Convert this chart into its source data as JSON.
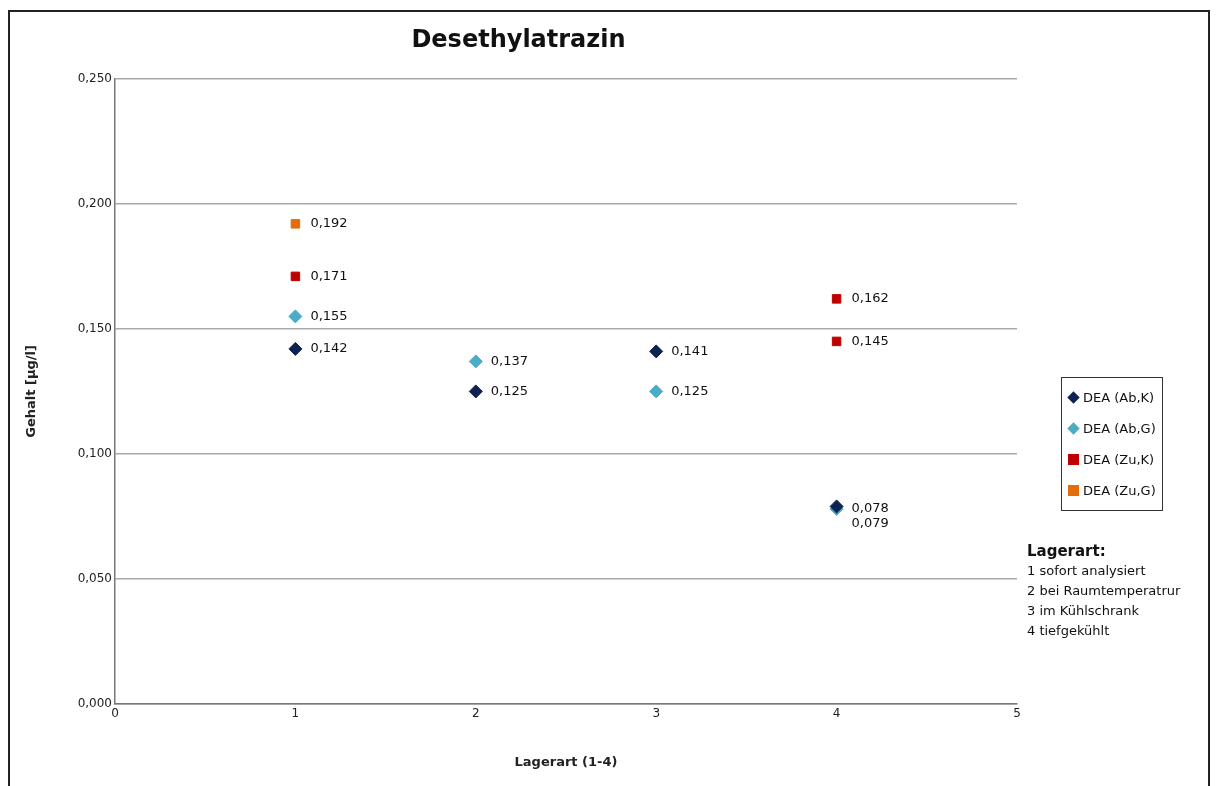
{
  "chart_data": {
    "type": "scatter",
    "title": "Desethylatrazin",
    "xlabel": "Lagerart (1-4)",
    "ylabel": "Gehalt [µg/l]",
    "xlim": [
      0,
      5
    ],
    "xticks": [
      0,
      1,
      2,
      3,
      4,
      5
    ],
    "ylim": [
      0,
      0.25
    ],
    "yticks": [
      {
        "value": 0,
        "label": "0,000"
      },
      {
        "value": 0.05,
        "label": "0,050"
      },
      {
        "value": 0.1,
        "label": "0,100"
      },
      {
        "value": 0.15,
        "label": "0,150"
      },
      {
        "value": 0.2,
        "label": "0,200"
      },
      {
        "value": 0.25,
        "label": "0,250"
      }
    ],
    "grid": "y",
    "legend": "right",
    "series": [
      {
        "name": "DEA (Ab,K)",
        "color": "#0e2254",
        "marker": "diamond",
        "x": [
          1,
          2,
          3,
          4
        ],
        "values": [
          0.142,
          0.125,
          0.141,
          0.079
        ],
        "value_labels": [
          "0,142",
          "0,125",
          "0,141",
          "0,079"
        ]
      },
      {
        "name": "DEA (Ab,G)",
        "color": "#4bacc6",
        "marker": "diamond",
        "x": [
          1,
          2,
          3,
          4
        ],
        "values": [
          0.155,
          0.137,
          0.125,
          0.078
        ],
        "value_labels": [
          "0,155",
          "0,137",
          "0,125",
          "0,078"
        ]
      },
      {
        "name": "DEA (Zu,K)",
        "color": "#c00000",
        "marker": "square",
        "x": [
          1,
          4,
          4
        ],
        "values": [
          0.171,
          0.162,
          0.145
        ],
        "value_labels": [
          "0,171",
          "0,162",
          "0,145"
        ]
      },
      {
        "name": "DEA (Zu,G)",
        "color": "#e46c0a",
        "marker": "square",
        "x": [
          1
        ],
        "values": [
          0.192
        ],
        "value_labels": [
          "0,192"
        ]
      }
    ],
    "annotations": [
      "Lagerart:",
      "1 sofort analysiert",
      "2 bei Raumtemperatrur",
      "3 im Kühlschrank",
      "4 tiefgekühlt"
    ]
  }
}
